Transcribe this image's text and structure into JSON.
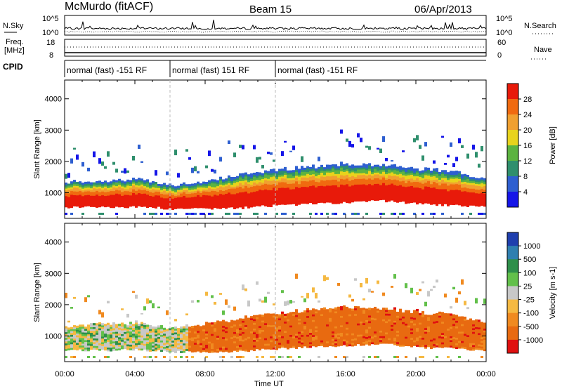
{
  "header": {
    "station": "McMurdo (fitACF)",
    "beam": "Beam 15",
    "date": "06/Apr/2013"
  },
  "top_panel": {
    "left_label": "N.Sky",
    "right_label": "N.Search",
    "y_ticks_left": [
      "10^5",
      "10^0"
    ],
    "y_ticks_right": [
      "10^5",
      "10^0"
    ]
  },
  "freq_panel": {
    "left_label_1": "Freq.",
    "left_label_2": "[MHz]",
    "right_label": "Nave",
    "left_ticks": [
      "18",
      "8"
    ],
    "right_ticks": [
      "60",
      "0"
    ]
  },
  "cpid": {
    "label": "CPID",
    "segments": [
      {
        "text": "normal (fast) -151 RF",
        "start": 0,
        "end": 6
      },
      {
        "text": "normal (fast) 151 RF",
        "start": 6,
        "end": 12
      },
      {
        "text": "normal (fast) -151 RF",
        "start": 12,
        "end": 24
      }
    ]
  },
  "chart_data": [
    {
      "type": "heatmap",
      "title": "",
      "xlabel": "Time UT",
      "ylabel": "Slant Range [km]",
      "xlim": [
        0,
        24
      ],
      "ylim": [
        180,
        4600
      ],
      "x_ticks": [
        "00:00",
        "04:00",
        "08:00",
        "12:00",
        "16:00",
        "20:00",
        "00:00"
      ],
      "y_ticks": [
        1000,
        2000,
        3000,
        4000
      ],
      "colorbar": {
        "label": "Power [dB]",
        "ticks": [
          "4",
          "8",
          "12",
          "16",
          "20",
          "24",
          "28"
        ],
        "colors": [
          "#1515e8",
          "#2e5fd0",
          "#2f8f6d",
          "#5cb340",
          "#e8d31c",
          "#f0a030",
          "#f06a10",
          "#e81a0a"
        ]
      },
      "approx_scatter_boundary_km": {
        "hours": [
          0,
          2,
          4,
          6,
          8,
          10,
          12,
          14,
          16,
          18,
          20,
          22,
          24
        ],
        "lower": [
          550,
          550,
          560,
          500,
          500,
          520,
          600,
          650,
          700,
          750,
          650,
          600,
          550
        ],
        "upper": [
          1300,
          1350,
          1400,
          1200,
          1350,
          1550,
          1700,
          1800,
          1900,
          1850,
          1750,
          1650,
          1400
        ]
      }
    },
    {
      "type": "heatmap",
      "title": "",
      "xlabel": "Time UT",
      "ylabel": "Slant Range [km]",
      "xlim": [
        0,
        24
      ],
      "ylim": [
        180,
        4600
      ],
      "x_ticks": [
        "00:00",
        "04:00",
        "08:00",
        "12:00",
        "16:00",
        "20:00",
        "00:00"
      ],
      "y_ticks": [
        1000,
        2000,
        3000,
        4000
      ],
      "colorbar": {
        "label": "Velocity [m s-1]",
        "ticks": [
          "1000",
          "500",
          "100",
          "25",
          "-25",
          "-100",
          "-500",
          "-1000"
        ],
        "colors": [
          "#1f3fae",
          "#2f7fb0",
          "#2e8f4a",
          "#62c04a",
          "#c8c8c8",
          "#f5b942",
          "#f08a20",
          "#e86a10",
          "#e01010"
        ]
      }
    }
  ]
}
